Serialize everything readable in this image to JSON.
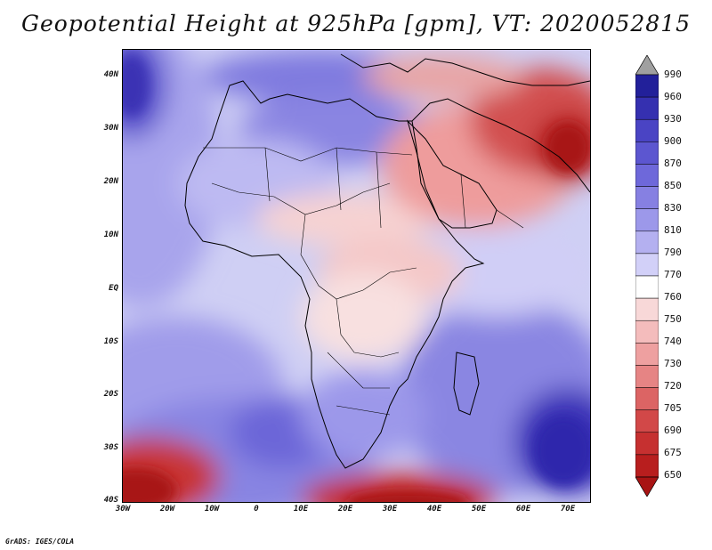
{
  "title": "Geopotential Height at 925hPa [gpm], VT: 2020052815",
  "footer": "GrADS: IGES/COLA",
  "map": {
    "variable": "Geopotential Height",
    "level": "925hPa",
    "units": "gpm",
    "valid_time": "2020052815",
    "lon_range": [
      -30,
      75
    ],
    "lat_range": [
      -40,
      45
    ],
    "lat_ticks": [
      "40N",
      "30N",
      "20N",
      "10N",
      "EQ",
      "10S",
      "20S",
      "30S",
      "40S"
    ],
    "lon_ticks": [
      "30W",
      "20W",
      "10W",
      "0",
      "10E",
      "20E",
      "30E",
      "40E",
      "50E",
      "60E",
      "70E"
    ]
  },
  "colorbar": {
    "levels": [
      "990",
      "960",
      "930",
      "900",
      "870",
      "850",
      "830",
      "810",
      "790",
      "770",
      "760",
      "750",
      "740",
      "730",
      "720",
      "705",
      "690",
      "675",
      "650"
    ],
    "colors": [
      "#a0a0a0",
      "#22209a",
      "#3530b0",
      "#4a44c4",
      "#5c56d0",
      "#6e68da",
      "#8680e2",
      "#9c98ea",
      "#b4b0f0",
      "#d2d0f8",
      "#ffffff",
      "#f8d8d8",
      "#f4bcbc",
      "#eea0a0",
      "#e68484",
      "#dc6464",
      "#d24848",
      "#c63030",
      "#b81e1e",
      "#a81414"
    ]
  }
}
